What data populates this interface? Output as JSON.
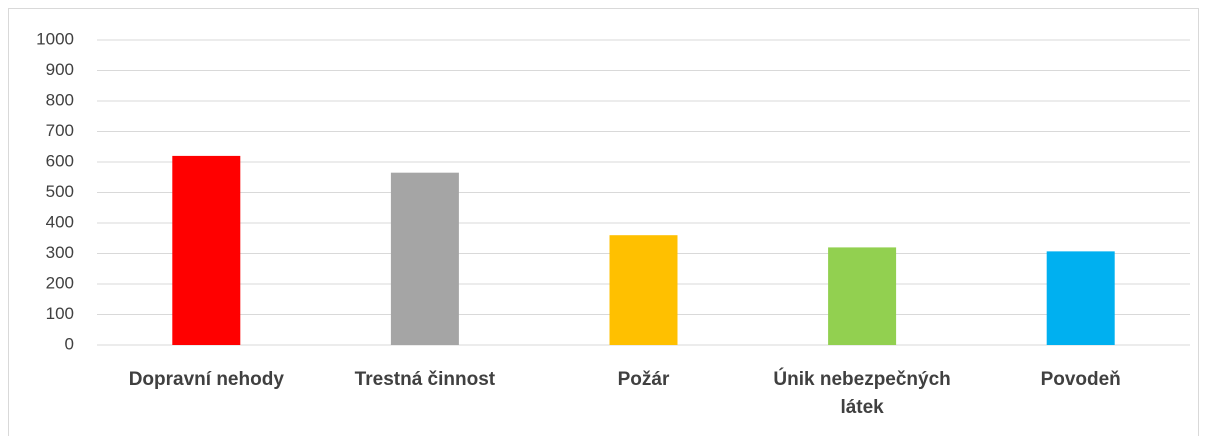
{
  "chart_data": {
    "type": "bar",
    "categories": [
      "Dopravní nehody",
      "Trestná činnost",
      "Požár",
      "Únik nebezpečných látek",
      "Povodeň"
    ],
    "values": [
      620,
      565,
      360,
      320,
      307
    ],
    "colors": [
      "#ff0000",
      "#a5a5a5",
      "#ffc000",
      "#92d050",
      "#00b0f0"
    ],
    "ylim": [
      0,
      1000
    ],
    "yticks": [
      0,
      100,
      200,
      300,
      400,
      500,
      600,
      700,
      800,
      900,
      1000
    ],
    "grid": true
  }
}
